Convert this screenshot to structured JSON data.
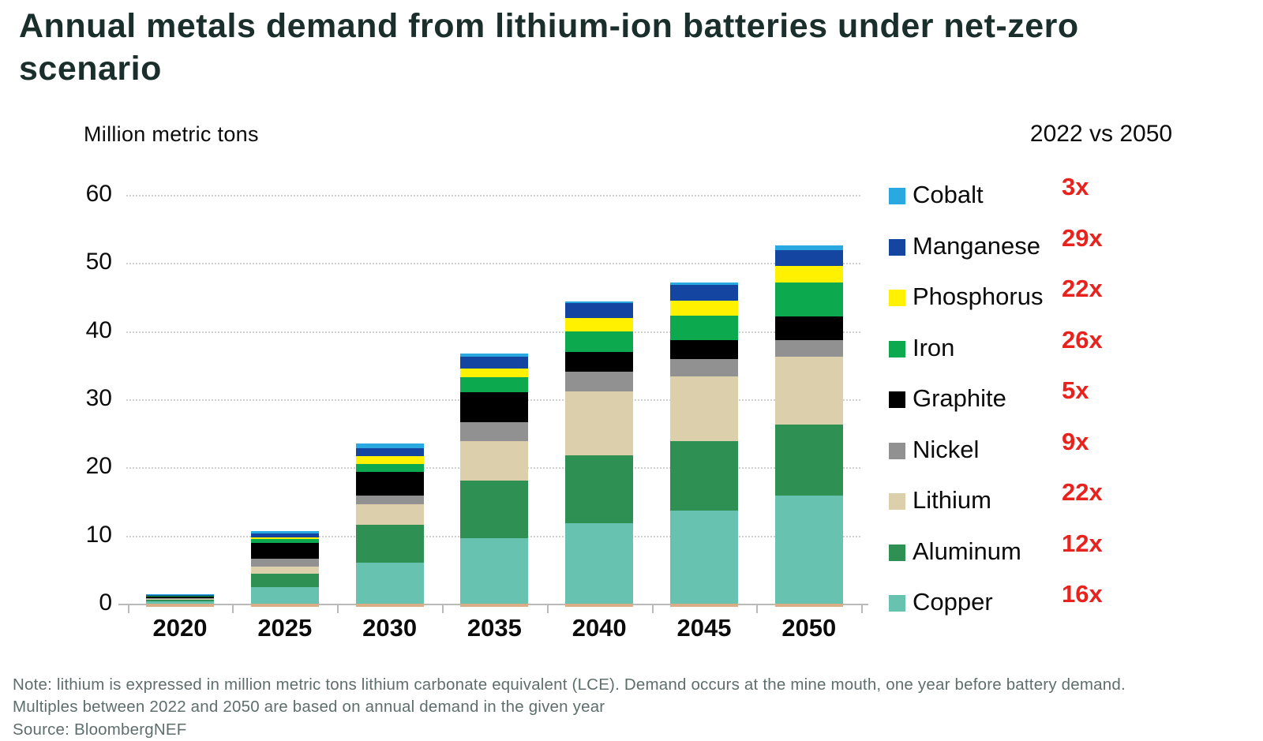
{
  "header": {
    "title": "Annual metals demand from lithium-ion batteries under net-zero scenario"
  },
  "chart": {
    "unit_label": "Million metric tons",
    "comparison_header": "2022 vs 2050",
    "multiplier_color": "#e8231e",
    "grid_color": "#cfcfcf"
  },
  "chart_data": {
    "type": "bar",
    "stacked": true,
    "title": "Annual metals demand from lithium-ion batteries under net-zero scenario",
    "ylabel": "Million metric tons",
    "ylim": [
      0,
      60
    ],
    "yticks": [
      0,
      10,
      20,
      30,
      40,
      50,
      60
    ],
    "grid": "horizontal dotted lines",
    "legend_position": "right",
    "comparison_header": "2022 vs 2050",
    "categories": [
      "2020",
      "2025",
      "2030",
      "2035",
      "2040",
      "2045",
      "2050"
    ],
    "series": [
      {
        "name": "Cobalt",
        "color": "#29a9e0",
        "multiplier": "3x",
        "values": [
          0.15,
          0.4,
          0.7,
          0.4,
          0.3,
          0.4,
          0.7
        ]
      },
      {
        "name": "Manganese",
        "color": "#1445a0",
        "multiplier": "29x",
        "values": [
          0.02,
          0.6,
          1.1,
          1.8,
          2.2,
          2.3,
          2.3
        ]
      },
      {
        "name": "Phosphorus",
        "color": "#fff100",
        "multiplier": "22x",
        "values": [
          0.03,
          0.25,
          1.2,
          1.2,
          1.9,
          2.2,
          2.4
        ]
      },
      {
        "name": "Iron",
        "color": "#0ca94e",
        "multiplier": "26x",
        "values": [
          0.05,
          0.55,
          1.1,
          2.3,
          3.0,
          3.6,
          5.0
        ]
      },
      {
        "name": "Graphite",
        "color": "#000000",
        "multiplier": "5x",
        "values": [
          0.3,
          2.3,
          3.5,
          4.4,
          3.0,
          2.8,
          3.5
        ]
      },
      {
        "name": "Nickel",
        "color": "#919191",
        "multiplier": "9x",
        "values": [
          0.1,
          1.2,
          1.3,
          2.7,
          2.8,
          2.5,
          2.4
        ]
      },
      {
        "name": "Lithium",
        "color": "#dccfac",
        "multiplier": "22x",
        "values": [
          0.2,
          1.0,
          3.0,
          5.8,
          9.4,
          9.5,
          10.0
        ]
      },
      {
        "name": "Aluminum",
        "color": "#2e9153",
        "multiplier": "12x",
        "values": [
          0.25,
          2.0,
          5.6,
          8.5,
          10.0,
          10.2,
          10.4
        ]
      },
      {
        "name": "Copper",
        "color": "#67c2b0",
        "multiplier": "16x",
        "values": [
          0.3,
          2.4,
          6.0,
          9.6,
          11.8,
          13.7,
          15.9
        ]
      }
    ],
    "totals": [
      1.4,
      10.7,
      23.5,
      36.7,
      44.4,
      47.2,
      52.6
    ]
  },
  "footer": {
    "line1": "Note: lithium is expressed in million metric tons lithium carbonate equivalent (LCE). Demand occurs at the mine mouth, one year before battery demand.",
    "line2": "Multiples between 2022 and 2050 are based on annual demand in the given year",
    "line3": "Source: BloombergNEF"
  }
}
